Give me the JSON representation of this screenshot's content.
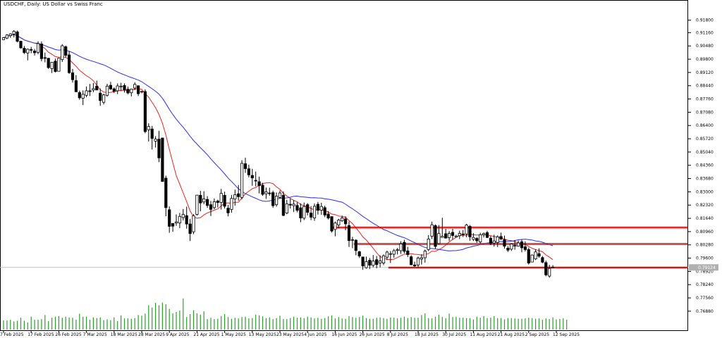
{
  "title": "USDCHF, Daily: US Dollar vs Swiss Franc",
  "colors": {
    "background": "#ffffff",
    "axis": "#000000",
    "candle": "#000000",
    "ma_fast": "#e8241c",
    "ma_slow": "#2d2ce8",
    "level": "#cc0000",
    "volume": "#2aa02a",
    "price_line": "#c0c0c0",
    "price_tag": "#b0b0b0"
  },
  "chart_data": {
    "type": "candlestick",
    "title": "USDCHF, Daily: US Dollar vs Swiss Franc",
    "symbol": "USDCHF",
    "timeframe": "Daily",
    "ylim": [
      0.7666,
      0.9233
    ],
    "y_ticks": [
      "0.91800",
      "0.91160",
      "0.90480",
      "0.89800",
      "0.89120",
      "0.88440",
      "0.87760",
      "0.87080",
      "0.86400",
      "0.85720",
      "0.85040",
      "0.84360",
      "0.83680",
      "0.83000",
      "0.82320",
      "0.81640",
      "0.80960",
      "0.80280",
      "0.79600",
      "0.78920",
      "0.78240",
      "0.77560",
      "0.76880"
    ],
    "x_ticks": [
      "7 Feb 2025",
      "17 Feb 2025",
      "26 Feb 2025",
      "7 Mar 2025",
      "18 Mar 2025",
      "28 Mar 2025",
      "9 Apr 2025",
      "21 Apr 2025",
      "1 May 2025",
      "13 May 2025",
      "23 May 2025",
      "4 Jun 2025",
      "16 Jun 2025",
      "26 Jun 2025",
      "8 Jul 2025",
      "18 Jul 2025",
      "30 Jul 2025",
      "11 Aug 2025",
      "21 Aug 2025",
      "2 Sep 2025",
      "12 Sep 2025"
    ],
    "x_tick_slots": [
      0,
      8,
      16,
      24,
      32,
      40,
      48,
      56,
      64,
      72,
      80,
      88,
      96,
      104,
      112,
      120,
      128,
      136,
      144,
      152,
      160
    ],
    "current_price": "0.79124",
    "levels": [
      {
        "from": 96,
        "value": 0.8117
      },
      {
        "from": 102,
        "value": 0.8033
      },
      {
        "from": 112,
        "value": 0.7912
      }
    ],
    "moving_averages": [
      {
        "color": "#e8241c",
        "key": "ma_fast"
      },
      {
        "color": "#2d2ce8",
        "key": "ma_slow"
      }
    ],
    "candles": [
      [
        0.908,
        0.9093,
        0.9078,
        0.909
      ],
      [
        0.9088,
        0.9109,
        0.9083,
        0.9104
      ],
      [
        0.9101,
        0.9113,
        0.909,
        0.911
      ],
      [
        0.9109,
        0.9129,
        0.9092,
        0.9123
      ],
      [
        0.912,
        0.9127,
        0.9066,
        0.9072
      ],
      [
        0.9072,
        0.9074,
        0.9034,
        0.9038
      ],
      [
        0.9036,
        0.9048,
        0.9006,
        0.9014
      ],
      [
        0.9012,
        0.9035,
        0.8974,
        0.9031
      ],
      [
        0.903,
        0.9043,
        0.9011,
        0.9026
      ],
      [
        0.9022,
        0.9033,
        0.8999,
        0.9013
      ],
      [
        0.9015,
        0.9072,
        0.9006,
        0.906
      ],
      [
        0.9058,
        0.9071,
        0.8969,
        0.8983
      ],
      [
        0.8988,
        0.9014,
        0.8964,
        0.8986
      ],
      [
        0.8985,
        0.8985,
        0.893,
        0.8937
      ],
      [
        0.8932,
        0.8966,
        0.8909,
        0.8964
      ],
      [
        0.897,
        0.8983,
        0.8912,
        0.8917
      ],
      [
        0.8918,
        0.8987,
        0.8918,
        0.8985
      ],
      [
        0.8978,
        0.9057,
        0.8966,
        0.9049
      ],
      [
        0.9044,
        0.905,
        0.899,
        0.9
      ],
      [
        0.9002,
        0.9022,
        0.8905,
        0.8911
      ],
      [
        0.891,
        0.893,
        0.886,
        0.8875
      ],
      [
        0.887,
        0.8898,
        0.8812,
        0.8813
      ],
      [
        0.8809,
        0.8819,
        0.8772,
        0.8782
      ],
      [
        0.878,
        0.882,
        0.8745,
        0.88
      ],
      [
        0.8795,
        0.884,
        0.8785,
        0.8818
      ],
      [
        0.8818,
        0.8853,
        0.8791,
        0.8814
      ],
      [
        0.8822,
        0.8858,
        0.8811,
        0.8829
      ],
      [
        0.8842,
        0.887,
        0.8822,
        0.8822
      ],
      [
        0.8806,
        0.883,
        0.8741,
        0.8768
      ],
      [
        0.8759,
        0.8803,
        0.8748,
        0.8797
      ],
      [
        0.8795,
        0.8854,
        0.8788,
        0.8842
      ],
      [
        0.8846,
        0.8864,
        0.8823,
        0.8827
      ],
      [
        0.8828,
        0.8835,
        0.8807,
        0.8816
      ],
      [
        0.8818,
        0.8856,
        0.8801,
        0.8843
      ],
      [
        0.8839,
        0.8859,
        0.8816,
        0.8842
      ],
      [
        0.8845,
        0.8856,
        0.8809,
        0.8823
      ],
      [
        0.8826,
        0.884,
        0.88,
        0.8807
      ],
      [
        0.8808,
        0.8828,
        0.8789,
        0.8827
      ],
      [
        0.8832,
        0.8862,
        0.8821,
        0.8851
      ],
      [
        0.8844,
        0.8844,
        0.8791,
        0.8803
      ],
      [
        0.8813,
        0.8817,
        0.8805,
        0.8815
      ],
      [
        0.8814,
        0.8825,
        0.86,
        0.8609
      ],
      [
        0.8618,
        0.8651,
        0.8558,
        0.8635
      ],
      [
        0.8622,
        0.8638,
        0.8517,
        0.8574
      ],
      [
        0.856,
        0.8585,
        0.8527,
        0.857
      ],
      [
        0.857,
        0.8613,
        0.8452,
        0.8474
      ],
      [
        0.8576,
        0.8576,
        0.8353,
        0.8353
      ],
      [
        0.837,
        0.8383,
        0.8175,
        0.8219
      ],
      [
        0.8208,
        0.8225,
        0.809,
        0.8123
      ],
      [
        0.8138,
        0.8139,
        0.8095,
        0.8124
      ],
      [
        0.814,
        0.8184,
        0.8126,
        0.8146
      ],
      [
        0.814,
        0.8192,
        0.8114,
        0.8174
      ],
      [
        0.8168,
        0.8212,
        0.8153,
        0.8184
      ],
      [
        0.8178,
        0.8224,
        0.8111,
        0.8135
      ],
      [
        0.8135,
        0.8161,
        0.8048,
        0.8086
      ],
      [
        0.8095,
        0.8186,
        0.8083,
        0.8177
      ],
      [
        0.8184,
        0.8283,
        0.8178,
        0.8283
      ],
      [
        0.8282,
        0.8305,
        0.82,
        0.8243
      ],
      [
        0.8248,
        0.8303,
        0.8236,
        0.8264
      ],
      [
        0.8261,
        0.8278,
        0.8218,
        0.823
      ],
      [
        0.8234,
        0.8253,
        0.8176,
        0.821
      ],
      [
        0.8219,
        0.8266,
        0.8211,
        0.8249
      ],
      [
        0.8253,
        0.826,
        0.822,
        0.8245
      ],
      [
        0.8246,
        0.8315,
        0.8209,
        0.8292
      ],
      [
        0.8282,
        0.8301,
        0.8214,
        0.8226
      ],
      [
        0.8216,
        0.8233,
        0.8174,
        0.8192
      ],
      [
        0.821,
        0.8284,
        0.8193,
        0.8266
      ],
      [
        0.8263,
        0.8311,
        0.8229,
        0.8285
      ],
      [
        0.829,
        0.8335,
        0.8255,
        0.8275
      ],
      [
        0.8271,
        0.8462,
        0.8262,
        0.8446
      ],
      [
        0.8444,
        0.8475,
        0.8397,
        0.8419
      ],
      [
        0.8418,
        0.8439,
        0.8374,
        0.8387
      ],
      [
        0.8384,
        0.8418,
        0.8331,
        0.8371
      ],
      [
        0.8359,
        0.8404,
        0.8328,
        0.8357
      ],
      [
        0.8352,
        0.8378,
        0.8292,
        0.8332
      ],
      [
        0.8334,
        0.8346,
        0.8279,
        0.8287
      ],
      [
        0.829,
        0.8322,
        0.8264,
        0.83
      ],
      [
        0.8294,
        0.8321,
        0.828,
        0.8293
      ],
      [
        0.8296,
        0.8306,
        0.8218,
        0.8229
      ],
      [
        0.8234,
        0.8297,
        0.8224,
        0.8278
      ],
      [
        0.8271,
        0.8307,
        0.8266,
        0.8294
      ],
      [
        0.8282,
        0.8302,
        0.8175,
        0.8179
      ],
      [
        0.8191,
        0.8259,
        0.8185,
        0.8239
      ],
      [
        0.8236,
        0.8265,
        0.8214,
        0.8232
      ],
      [
        0.8229,
        0.8257,
        0.8196,
        0.8237
      ],
      [
        0.823,
        0.8246,
        0.8195,
        0.8205
      ],
      [
        0.8218,
        0.8241,
        0.8144,
        0.8166
      ],
      [
        0.8165,
        0.8245,
        0.8155,
        0.8225
      ],
      [
        0.8234,
        0.8242,
        0.8179,
        0.8195
      ],
      [
        0.8191,
        0.8227,
        0.8155,
        0.817
      ],
      [
        0.8166,
        0.824,
        0.8151,
        0.8226
      ],
      [
        0.8236,
        0.8248,
        0.8183,
        0.8205
      ],
      [
        0.8206,
        0.8244,
        0.8182,
        0.8225
      ],
      [
        0.8219,
        0.8229,
        0.817,
        0.8181
      ],
      [
        0.8186,
        0.8201,
        0.8158,
        0.8166
      ],
      [
        0.8173,
        0.8174,
        0.8091,
        0.8099
      ],
      [
        0.8107,
        0.8148,
        0.8072,
        0.814
      ],
      [
        0.813,
        0.8162,
        0.8113,
        0.8155
      ],
      [
        0.8151,
        0.8178,
        0.8147,
        0.8166
      ],
      [
        0.8161,
        0.8174,
        0.8103,
        0.8136
      ],
      [
        0.8127,
        0.8148,
        0.8017,
        0.805
      ],
      [
        0.8054,
        0.8069,
        0.8011,
        0.8055
      ],
      [
        0.8052,
        0.8057,
        0.7975,
        0.7999
      ],
      [
        0.7993,
        0.7997,
        0.7961,
        0.7971
      ],
      [
        0.7966,
        0.7966,
        0.79,
        0.792
      ],
      [
        0.7911,
        0.7968,
        0.7906,
        0.7942
      ],
      [
        0.7949,
        0.7961,
        0.7904,
        0.7924
      ],
      [
        0.7923,
        0.7976,
        0.7913,
        0.7945
      ],
      [
        0.7952,
        0.7971,
        0.7908,
        0.7927
      ],
      [
        0.7935,
        0.7974,
        0.7913,
        0.7946
      ],
      [
        0.7935,
        0.7979,
        0.7924,
        0.7972
      ],
      [
        0.7965,
        0.7998,
        0.795,
        0.7991
      ],
      [
        0.798,
        0.7996,
        0.7935,
        0.7983
      ],
      [
        0.798,
        0.8007,
        0.7962,
        0.7998
      ],
      [
        0.8001,
        0.8012,
        0.7979,
        0.8003
      ],
      [
        0.7998,
        0.8047,
        0.7982,
        0.8033
      ],
      [
        0.8041,
        0.8054,
        0.7984,
        0.7995
      ],
      [
        0.7997,
        0.8018,
        0.7966,
        0.7978
      ],
      [
        0.7967,
        0.7975,
        0.7924,
        0.7926
      ],
      [
        0.7925,
        0.7942,
        0.7915,
        0.792
      ],
      [
        0.7925,
        0.7968,
        0.7914,
        0.7961
      ],
      [
        0.7955,
        0.798,
        0.7927,
        0.7962
      ],
      [
        0.7962,
        0.8004,
        0.7937,
        0.7996
      ],
      [
        0.8004,
        0.8078,
        0.7996,
        0.8058
      ],
      [
        0.8072,
        0.8147,
        0.8058,
        0.8131
      ],
      [
        0.8127,
        0.8133,
        0.8008,
        0.802
      ],
      [
        0.8035,
        0.813,
        0.8031,
        0.8086
      ],
      [
        0.8066,
        0.8167,
        0.8066,
        0.8072
      ],
      [
        0.8085,
        0.811,
        0.806,
        0.8063
      ],
      [
        0.8065,
        0.8099,
        0.8048,
        0.8087
      ],
      [
        0.8092,
        0.811,
        0.8055,
        0.8076
      ],
      [
        0.8068,
        0.808,
        0.8067,
        0.8073
      ],
      [
        0.8075,
        0.8101,
        0.8058,
        0.8087
      ],
      [
        0.8084,
        0.8104,
        0.8068,
        0.808
      ],
      [
        0.8084,
        0.8136,
        0.8067,
        0.813
      ],
      [
        0.8123,
        0.813,
        0.8049,
        0.8069
      ],
      [
        0.8056,
        0.8088,
        0.8048,
        0.8066
      ],
      [
        0.8061,
        0.8068,
        0.8038,
        0.8049
      ],
      [
        0.8043,
        0.809,
        0.8033,
        0.808
      ],
      [
        0.808,
        0.8091,
        0.8066,
        0.8086
      ],
      [
        0.8091,
        0.81,
        0.8063,
        0.8066
      ],
      [
        0.8062,
        0.8073,
        0.8027,
        0.8035
      ],
      [
        0.8037,
        0.808,
        0.8019,
        0.8048
      ],
      [
        0.804,
        0.8077,
        0.8017,
        0.8069
      ],
      [
        0.8071,
        0.8091,
        0.8053,
        0.8058
      ],
      [
        0.8055,
        0.8076,
        0.8009,
        0.8021
      ],
      [
        0.8011,
        0.8022,
        0.7992,
        0.8001
      ],
      [
        0.8006,
        0.8034,
        0.7997,
        0.8032
      ],
      [
        0.8024,
        0.8053,
        0.8003,
        0.8025
      ],
      [
        0.8021,
        0.805,
        0.8019,
        0.8038
      ],
      [
        0.8044,
        0.8054,
        0.799,
        0.8013
      ],
      [
        0.8018,
        0.8046,
        0.7994,
        0.8004
      ],
      [
        0.8004,
        0.8014,
        0.7927,
        0.7935
      ],
      [
        0.794,
        0.7979,
        0.7939,
        0.7976
      ],
      [
        0.7956,
        0.8005,
        0.795,
        0.7992
      ],
      [
        0.7983,
        0.801,
        0.7962,
        0.797
      ],
      [
        0.7963,
        0.7971,
        0.7934,
        0.7939
      ],
      [
        0.7937,
        0.7947,
        0.7867,
        0.7874
      ],
      [
        0.7868,
        0.7926,
        0.786,
        0.7907
      ],
      [
        0.7911,
        0.7924,
        0.7909,
        0.7913
      ]
    ],
    "volumes": [
      0.27,
      0.27,
      0.29,
      0.24,
      0.26,
      0.35,
      0.26,
      0.21,
      0.38,
      0.29,
      0.29,
      0.31,
      0.43,
      0.25,
      0.35,
      0.38,
      0.4,
      0.35,
      0.38,
      0.36,
      0.35,
      0.29,
      0.47,
      0.38,
      0.38,
      0.29,
      0.36,
      0.34,
      0.36,
      0.28,
      0.3,
      0.28,
      0.36,
      0.25,
      0.42,
      0.33,
      0.33,
      0.32,
      0.34,
      0.43,
      0.41,
      0.47,
      0.72,
      0.65,
      0.79,
      0.72,
      0.8,
      0.75,
      0.61,
      0.48,
      0.52,
      0.56,
      0.92,
      0.37,
      0.46,
      0.57,
      0.48,
      0.44,
      0.54,
      0.31,
      0.35,
      0.31,
      0.32,
      0.4,
      0.46,
      0.37,
      0.32,
      0.35,
      0.33,
      0.37,
      0.38,
      0.33,
      0.34,
      0.44,
      0.42,
      0.39,
      0.34,
      0.36,
      0.31,
      0.34,
      0.41,
      0.31,
      0.31,
      0.34,
      0.38,
      0.35,
      0.36,
      0.34,
      0.38,
      0.36,
      0.33,
      0.35,
      0.32,
      0.34,
      0.39,
      0.42,
      0.33,
      0.37,
      0.33,
      0.32,
      0.4,
      0.37,
      0.35,
      0.37,
      0.41,
      0.34,
      0.32,
      0.32,
      0.35,
      0.36,
      0.34,
      0.32,
      0.36,
      0.35,
      0.33,
      0.35,
      0.38,
      0.34,
      0.37,
      0.35,
      0.35,
      0.43,
      0.48,
      0.34,
      0.33,
      0.38,
      0.44,
      0.37,
      0.34,
      0.47,
      0.37,
      0.38,
      0.35,
      0.35,
      0.34,
      0.34,
      0.3,
      0.38,
      0.35,
      0.4,
      0.34,
      0.35,
      0.4,
      0.34,
      0.34,
      0.3,
      0.34,
      0.34,
      0.33,
      0.32,
      0.32,
      0.33,
      0.35,
      0.34,
      0.32,
      0.33,
      0.29,
      0.33,
      0.31,
      0.36,
      0.3,
      0.31,
      0.33,
      0.29
    ]
  }
}
